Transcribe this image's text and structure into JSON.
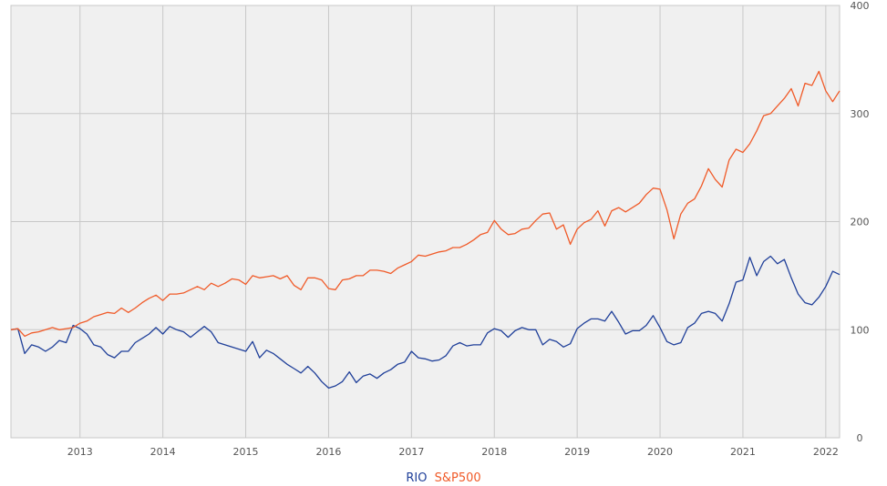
{
  "chart_data": {
    "type": "line",
    "title": "",
    "xlabel": "",
    "ylabel": "",
    "ylim": [
      0,
      400
    ],
    "xlim": [
      "2012-03",
      "2022-03"
    ],
    "grid": true,
    "legend_placement": "bottom-center",
    "y_ticks": [
      "400",
      "300",
      "200",
      "100",
      "0"
    ],
    "x_ticks": [
      "2013",
      "2014",
      "2015",
      "2016",
      "2017",
      "2018",
      "2019",
      "2020",
      "2021",
      "2022"
    ],
    "series": [
      {
        "name": "RIO",
        "color": "#1f3f99",
        "points": [
          [
            "2012-03",
            100
          ],
          [
            "2012-04",
            101
          ],
          [
            "2012-05",
            78
          ],
          [
            "2012-06",
            86
          ],
          [
            "2012-07",
            84
          ],
          [
            "2012-08",
            80
          ],
          [
            "2012-09",
            84
          ],
          [
            "2012-10",
            90
          ],
          [
            "2012-11",
            88
          ],
          [
            "2012-12",
            104
          ],
          [
            "2013-01",
            101
          ],
          [
            "2013-02",
            96
          ],
          [
            "2013-03",
            86
          ],
          [
            "2013-04",
            84
          ],
          [
            "2013-05",
            77
          ],
          [
            "2013-06",
            74
          ],
          [
            "2013-07",
            80
          ],
          [
            "2013-08",
            80
          ],
          [
            "2013-09",
            88
          ],
          [
            "2013-10",
            92
          ],
          [
            "2013-11",
            96
          ],
          [
            "2013-12",
            102
          ],
          [
            "2014-01",
            96
          ],
          [
            "2014-02",
            103
          ],
          [
            "2014-03",
            100
          ],
          [
            "2014-04",
            98
          ],
          [
            "2014-05",
            93
          ],
          [
            "2014-06",
            98
          ],
          [
            "2014-07",
            103
          ],
          [
            "2014-08",
            98
          ],
          [
            "2014-09",
            88
          ],
          [
            "2014-10",
            86
          ],
          [
            "2014-11",
            84
          ],
          [
            "2014-12",
            82
          ],
          [
            "2015-01",
            80
          ],
          [
            "2015-02",
            89
          ],
          [
            "2015-03",
            74
          ],
          [
            "2015-04",
            81
          ],
          [
            "2015-05",
            78
          ],
          [
            "2015-06",
            73
          ],
          [
            "2015-07",
            68
          ],
          [
            "2015-08",
            64
          ],
          [
            "2015-09",
            60
          ],
          [
            "2015-10",
            66
          ],
          [
            "2015-11",
            60
          ],
          [
            "2015-12",
            52
          ],
          [
            "2016-01",
            46
          ],
          [
            "2016-02",
            48
          ],
          [
            "2016-03",
            52
          ],
          [
            "2016-04",
            61
          ],
          [
            "2016-05",
            51
          ],
          [
            "2016-06",
            57
          ],
          [
            "2016-07",
            59
          ],
          [
            "2016-08",
            55
          ],
          [
            "2016-09",
            60
          ],
          [
            "2016-10",
            63
          ],
          [
            "2016-11",
            68
          ],
          [
            "2016-12",
            70
          ],
          [
            "2017-01",
            80
          ],
          [
            "2017-02",
            74
          ],
          [
            "2017-03",
            73
          ],
          [
            "2017-04",
            71
          ],
          [
            "2017-05",
            72
          ],
          [
            "2017-06",
            76
          ],
          [
            "2017-07",
            85
          ],
          [
            "2017-08",
            88
          ],
          [
            "2017-09",
            85
          ],
          [
            "2017-10",
            86
          ],
          [
            "2017-11",
            86
          ],
          [
            "2017-12",
            97
          ],
          [
            "2018-01",
            101
          ],
          [
            "2018-02",
            99
          ],
          [
            "2018-03",
            93
          ],
          [
            "2018-04",
            99
          ],
          [
            "2018-05",
            102
          ],
          [
            "2018-06",
            100
          ],
          [
            "2018-07",
            100
          ],
          [
            "2018-08",
            86
          ],
          [
            "2018-09",
            91
          ],
          [
            "2018-10",
            89
          ],
          [
            "2018-11",
            84
          ],
          [
            "2018-12",
            87
          ],
          [
            "2019-01",
            101
          ],
          [
            "2019-02",
            106
          ],
          [
            "2019-03",
            110
          ],
          [
            "2019-04",
            110
          ],
          [
            "2019-05",
            108
          ],
          [
            "2019-06",
            117
          ],
          [
            "2019-07",
            107
          ],
          [
            "2019-08",
            96
          ],
          [
            "2019-09",
            99
          ],
          [
            "2019-10",
            99
          ],
          [
            "2019-11",
            104
          ],
          [
            "2019-12",
            113
          ],
          [
            "2020-01",
            102
          ],
          [
            "2020-02",
            89
          ],
          [
            "2020-03",
            86
          ],
          [
            "2020-04",
            88
          ],
          [
            "2020-05",
            102
          ],
          [
            "2020-06",
            106
          ],
          [
            "2020-07",
            115
          ],
          [
            "2020-08",
            117
          ],
          [
            "2020-09",
            115
          ],
          [
            "2020-10",
            108
          ],
          [
            "2020-11",
            124
          ],
          [
            "2020-12",
            144
          ],
          [
            "2021-01",
            146
          ],
          [
            "2021-02",
            167
          ],
          [
            "2021-03",
            150
          ],
          [
            "2021-04",
            163
          ],
          [
            "2021-05",
            168
          ],
          [
            "2021-06",
            161
          ],
          [
            "2021-07",
            165
          ],
          [
            "2021-08",
            148
          ],
          [
            "2021-09",
            133
          ],
          [
            "2021-10",
            125
          ],
          [
            "2021-11",
            123
          ],
          [
            "2021-12",
            130
          ],
          [
            "2022-01",
            140
          ],
          [
            "2022-02",
            154
          ],
          [
            "2022-03",
            151
          ]
        ]
      },
      {
        "name": "S&P500",
        "color": "#f05a28",
        "points": [
          [
            "2012-03",
            100
          ],
          [
            "2012-04",
            101
          ],
          [
            "2012-05",
            94
          ],
          [
            "2012-06",
            97
          ],
          [
            "2012-07",
            98
          ],
          [
            "2012-08",
            100
          ],
          [
            "2012-09",
            102
          ],
          [
            "2012-10",
            100
          ],
          [
            "2012-11",
            101
          ],
          [
            "2012-12",
            102
          ],
          [
            "2013-01",
            106
          ],
          [
            "2013-02",
            108
          ],
          [
            "2013-03",
            112
          ],
          [
            "2013-04",
            114
          ],
          [
            "2013-05",
            116
          ],
          [
            "2013-06",
            115
          ],
          [
            "2013-07",
            120
          ],
          [
            "2013-08",
            116
          ],
          [
            "2013-09",
            120
          ],
          [
            "2013-10",
            125
          ],
          [
            "2013-11",
            129
          ],
          [
            "2013-12",
            132
          ],
          [
            "2014-01",
            127
          ],
          [
            "2014-02",
            133
          ],
          [
            "2014-03",
            133
          ],
          [
            "2014-04",
            134
          ],
          [
            "2014-05",
            137
          ],
          [
            "2014-06",
            140
          ],
          [
            "2014-07",
            137
          ],
          [
            "2014-08",
            143
          ],
          [
            "2014-09",
            140
          ],
          [
            "2014-10",
            143
          ],
          [
            "2014-11",
            147
          ],
          [
            "2014-12",
            146
          ],
          [
            "2015-01",
            142
          ],
          [
            "2015-02",
            150
          ],
          [
            "2015-03",
            148
          ],
          [
            "2015-04",
            149
          ],
          [
            "2015-05",
            150
          ],
          [
            "2015-06",
            147
          ],
          [
            "2015-07",
            150
          ],
          [
            "2015-08",
            141
          ],
          [
            "2015-09",
            137
          ],
          [
            "2015-10",
            148
          ],
          [
            "2015-11",
            148
          ],
          [
            "2015-12",
            146
          ],
          [
            "2016-01",
            138
          ],
          [
            "2016-02",
            137
          ],
          [
            "2016-03",
            146
          ],
          [
            "2016-04",
            147
          ],
          [
            "2016-05",
            150
          ],
          [
            "2016-06",
            150
          ],
          [
            "2016-07",
            155
          ],
          [
            "2016-08",
            155
          ],
          [
            "2016-09",
            154
          ],
          [
            "2016-10",
            152
          ],
          [
            "2016-11",
            157
          ],
          [
            "2016-12",
            160
          ],
          [
            "2017-01",
            163
          ],
          [
            "2017-02",
            169
          ],
          [
            "2017-03",
            168
          ],
          [
            "2017-04",
            170
          ],
          [
            "2017-05",
            172
          ],
          [
            "2017-06",
            173
          ],
          [
            "2017-07",
            176
          ],
          [
            "2017-08",
            176
          ],
          [
            "2017-09",
            179
          ],
          [
            "2017-10",
            183
          ],
          [
            "2017-11",
            188
          ],
          [
            "2017-12",
            190
          ],
          [
            "2018-01",
            201
          ],
          [
            "2018-02",
            193
          ],
          [
            "2018-03",
            188
          ],
          [
            "2018-04",
            189
          ],
          [
            "2018-05",
            193
          ],
          [
            "2018-06",
            194
          ],
          [
            "2018-07",
            201
          ],
          [
            "2018-08",
            207
          ],
          [
            "2018-09",
            208
          ],
          [
            "2018-10",
            193
          ],
          [
            "2018-11",
            197
          ],
          [
            "2018-12",
            179
          ],
          [
            "2019-01",
            193
          ],
          [
            "2019-02",
            199
          ],
          [
            "2019-03",
            202
          ],
          [
            "2019-04",
            210
          ],
          [
            "2019-05",
            196
          ],
          [
            "2019-06",
            210
          ],
          [
            "2019-07",
            213
          ],
          [
            "2019-08",
            209
          ],
          [
            "2019-09",
            213
          ],
          [
            "2019-10",
            217
          ],
          [
            "2019-11",
            225
          ],
          [
            "2019-12",
            231
          ],
          [
            "2020-01",
            230
          ],
          [
            "2020-02",
            211
          ],
          [
            "2020-03",
            184
          ],
          [
            "2020-04",
            207
          ],
          [
            "2020-05",
            217
          ],
          [
            "2020-06",
            221
          ],
          [
            "2020-07",
            233
          ],
          [
            "2020-08",
            249
          ],
          [
            "2020-09",
            239
          ],
          [
            "2020-10",
            232
          ],
          [
            "2020-11",
            257
          ],
          [
            "2020-12",
            267
          ],
          [
            "2021-01",
            264
          ],
          [
            "2021-02",
            272
          ],
          [
            "2021-03",
            284
          ],
          [
            "2021-04",
            298
          ],
          [
            "2021-05",
            300
          ],
          [
            "2021-06",
            307
          ],
          [
            "2021-07",
            314
          ],
          [
            "2021-08",
            323
          ],
          [
            "2021-09",
            307
          ],
          [
            "2021-10",
            328
          ],
          [
            "2021-11",
            326
          ],
          [
            "2021-12",
            339
          ],
          [
            "2022-01",
            321
          ],
          [
            "2022-02",
            311
          ],
          [
            "2022-03",
            321
          ]
        ]
      }
    ]
  }
}
